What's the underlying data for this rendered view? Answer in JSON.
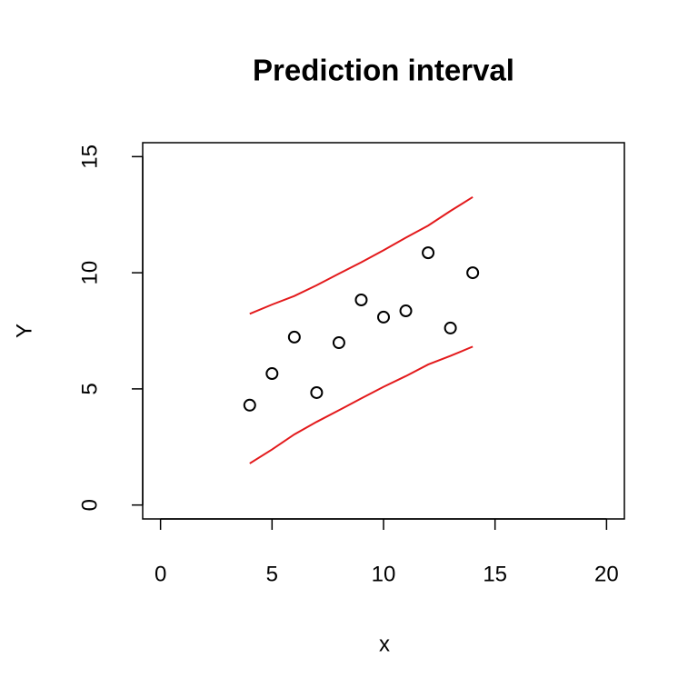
{
  "chart_data": {
    "type": "scatter",
    "title": "Prediction interval",
    "x_label": "x",
    "y_label": "Y",
    "xlim": [
      -0.8,
      20.8
    ],
    "ylim": [
      -0.6,
      15.6
    ],
    "xticks": [
      0,
      5,
      10,
      15,
      20
    ],
    "yticks": [
      0,
      5,
      10,
      15
    ],
    "series": [
      {
        "type": "points",
        "color": "#000000",
        "x": [
          4,
          5,
          6,
          7,
          8,
          9,
          10,
          11,
          12,
          13,
          14
        ],
        "values": [
          4.3,
          5.66,
          7.23,
          4.84,
          6.99,
          8.83,
          8.09,
          8.36,
          10.86,
          7.62,
          10.0
        ]
      },
      {
        "type": "line",
        "color": "#e31a1c",
        "x": [
          4,
          5,
          6,
          7,
          8,
          9,
          10,
          11,
          12,
          13,
          14
        ],
        "values": [
          8.23,
          8.63,
          9.0,
          9.46,
          9.96,
          10.45,
          10.97,
          11.51,
          12.03,
          12.66,
          13.26
        ]
      },
      {
        "type": "line",
        "color": "#e31a1c",
        "x": [
          4,
          5,
          6,
          7,
          8,
          9,
          10,
          11,
          12,
          13,
          14
        ],
        "values": [
          1.79,
          2.39,
          3.04,
          3.58,
          4.08,
          4.59,
          5.09,
          5.55,
          6.05,
          6.42,
          6.82
        ]
      }
    ]
  }
}
